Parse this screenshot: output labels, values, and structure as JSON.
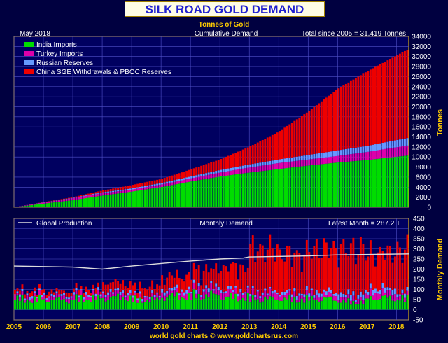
{
  "chart_data": [
    {
      "type": "area",
      "title": "SILK ROAD GOLD DEMAND",
      "subtitle": "Tonnes of Gold",
      "panel_label": "Cumulative Demand",
      "date_label": "May  2018",
      "total_label": "Total since 2005 = 31,419 Tonnes",
      "ylabel": "Tonnes",
      "ylim": [
        0,
        34000
      ],
      "yticks": [
        "0",
        "2000",
        "4000",
        "6000",
        "8000",
        "10000",
        "12000",
        "14000",
        "16000",
        "18000",
        "20000",
        "22000",
        "24000",
        "26000",
        "28000",
        "30000",
        "32000",
        "34000"
      ],
      "legend": [
        {
          "name": "India Imports",
          "color": "#00dd00"
        },
        {
          "name": "Turkey Imports",
          "color": "#dd00aa"
        },
        {
          "name": "Russian Reserves",
          "color": "#6699ff"
        },
        {
          "name": "China SGE Withdrawals & PBOC Reserves",
          "color": "#ee0000"
        }
      ],
      "x": [
        2005.0,
        2006.0,
        2007.0,
        2008.0,
        2009.0,
        2010.0,
        2011.0,
        2012.0,
        2013.0,
        2014.0,
        2015.0,
        2016.0,
        2017.0,
        2018.4
      ],
      "series": [
        {
          "name": "India Imports",
          "values": [
            0,
            700,
            1400,
            2300,
            3100,
            4000,
            5100,
            6100,
            6900,
            7600,
            8300,
            8900,
            9400,
            10300
          ]
        },
        {
          "name": "Turkey Imports",
          "values": [
            0,
            900,
            1800,
            2800,
            3500,
            4500,
            5700,
            6900,
            7900,
            8800,
            9500,
            10200,
            11000,
            12300
          ]
        },
        {
          "name": "Russian Reserves",
          "values": [
            0,
            950,
            1880,
            2950,
            3750,
            4800,
            6100,
            7400,
            8500,
            9500,
            10400,
            11300,
            12200,
            13800
          ]
        },
        {
          "name": "China SGE Withdrawals & PBOC Reserves",
          "values": [
            0,
            1000,
            2000,
            3300,
            4400,
            5600,
            7500,
            9500,
            12000,
            15000,
            19000,
            23500,
            27000,
            31419
          ]
        }
      ]
    },
    {
      "type": "bar",
      "panel_label": "Monthly Demand",
      "latest_label": "Latest Month = 287.2 T",
      "production_label": "Global Production",
      "ylabel": "Monthly Demand",
      "ylim": [
        -50,
        450
      ],
      "yticks": [
        "-50",
        "0",
        "50",
        "100",
        "150",
        "200",
        "250",
        "300",
        "350",
        "400",
        "450"
      ],
      "xticks": [
        "2005",
        "2006",
        "2007",
        "2008",
        "2009",
        "2010",
        "2011",
        "2012",
        "2013",
        "2014",
        "2015",
        "2016",
        "2017",
        "2018"
      ],
      "x_start": 2005.0,
      "x_end": 2018.42,
      "months": 161,
      "production": [
        {
          "year": 2005.0,
          "value": 215
        },
        {
          "year": 2007.0,
          "value": 210
        },
        {
          "year": 2008.0,
          "value": 200
        },
        {
          "year": 2009.0,
          "value": 215
        },
        {
          "year": 2010.0,
          "value": 228
        },
        {
          "year": 2011.0,
          "value": 240
        },
        {
          "year": 2012.0,
          "value": 250
        },
        {
          "year": 2012.8,
          "value": 255
        },
        {
          "year": 2013.0,
          "value": 260
        },
        {
          "year": 2015.0,
          "value": 265
        },
        {
          "year": 2016.0,
          "value": 270
        },
        {
          "year": 2018.42,
          "value": 275
        }
      ],
      "stack_colors": [
        "#00dd00",
        "#dd00aa",
        "#6699ff",
        "#ee0000"
      ],
      "segments": [
        {
          "from": 2005.0,
          "india": 60,
          "turkey": 15,
          "russia": 8,
          "china": 18
        },
        {
          "from": 2006.0,
          "india": 55,
          "turkey": 15,
          "russia": 8,
          "china": 18
        },
        {
          "from": 2007.0,
          "india": 62,
          "turkey": 18,
          "russia": 9,
          "china": 20
        },
        {
          "from": 2008.0,
          "india": 68,
          "turkey": 18,
          "russia": 10,
          "china": 40
        },
        {
          "from": 2009.0,
          "india": 55,
          "turkey": 14,
          "russia": 8,
          "china": 40
        },
        {
          "from": 2010.0,
          "india": 75,
          "turkey": 20,
          "russia": 12,
          "china": 60
        },
        {
          "from": 2011.0,
          "india": 80,
          "turkey": 25,
          "russia": 12,
          "china": 80
        },
        {
          "from": 2012.0,
          "india": 70,
          "turkey": 25,
          "russia": 10,
          "china": 105
        },
        {
          "from": 2013.0,
          "india": 60,
          "turkey": 25,
          "russia": 8,
          "china": 200
        },
        {
          "from": 2014.0,
          "india": 60,
          "turkey": 20,
          "russia": 12,
          "china": 175
        },
        {
          "from": 2015.0,
          "india": 60,
          "turkey": 18,
          "russia": 15,
          "china": 200
        },
        {
          "from": 2016.0,
          "india": 45,
          "turkey": 18,
          "russia": 18,
          "china": 210
        },
        {
          "from": 2017.0,
          "india": 65,
          "turkey": 25,
          "russia": 18,
          "china": 165
        },
        {
          "from": 2018.0,
          "india": 60,
          "turkey": 15,
          "russia": 14,
          "china": 200
        }
      ]
    }
  ],
  "footer": {
    "credit": "world gold charts © www.goldchartsrus.com"
  },
  "colors": {
    "background": "#000040",
    "plot": "#000060",
    "grid": "#5050c8",
    "label": "#ffcc00",
    "text": "#ffffff",
    "production": "#dddddd"
  }
}
